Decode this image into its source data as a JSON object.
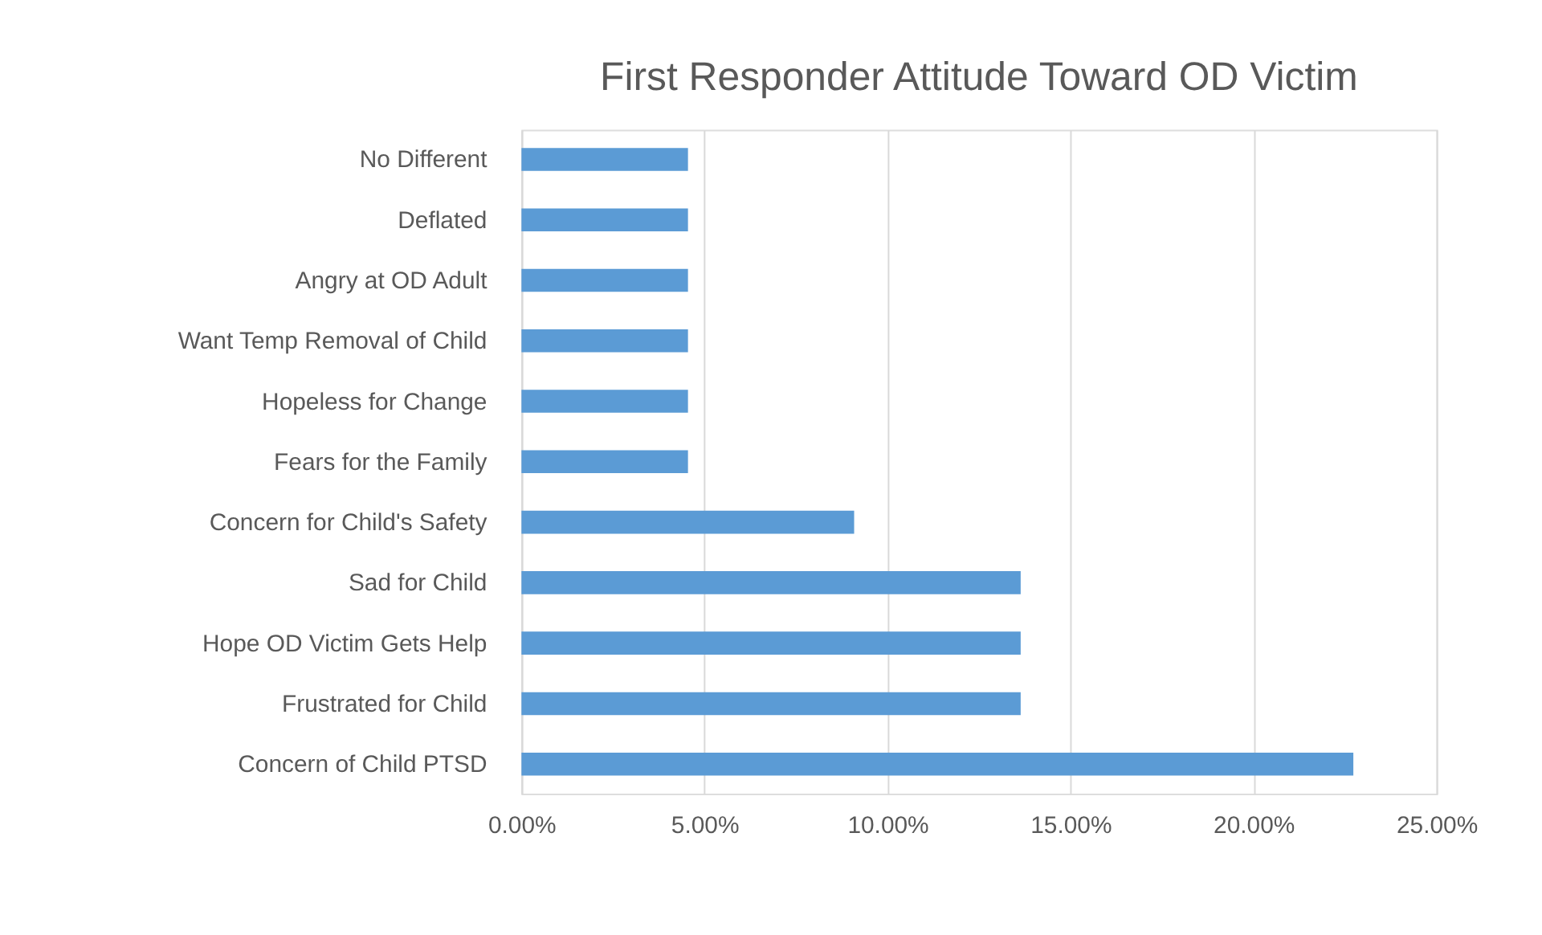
{
  "chart_data": {
    "type": "bar",
    "orientation": "horizontal",
    "title": "First Responder  Attitude Toward OD Victim",
    "categories": [
      "No Different",
      "Deflated",
      "Angry at OD Adult",
      "Want Temp Removal of Child",
      "Hopeless for Change",
      "Fears for the Family",
      "Concern for Child's Safety",
      "Sad for Child",
      "Hope OD Victim Gets Help",
      "Frustrated for Child",
      "Concern of Child PTSD"
    ],
    "values": [
      4.55,
      4.55,
      4.55,
      4.55,
      4.55,
      4.55,
      9.09,
      13.64,
      13.64,
      13.64,
      22.73
    ],
    "color": "#5b9bd5",
    "xlim": [
      0,
      25
    ],
    "xticks": [
      {
        "value": 0,
        "label": "0.00%"
      },
      {
        "value": 5,
        "label": "5.00%"
      },
      {
        "value": 10,
        "label": "10.00%"
      },
      {
        "value": 15,
        "label": "15.00%"
      },
      {
        "value": 20,
        "label": "20.00%"
      },
      {
        "value": 25,
        "label": "25.00%"
      }
    ],
    "grid": "x"
  }
}
